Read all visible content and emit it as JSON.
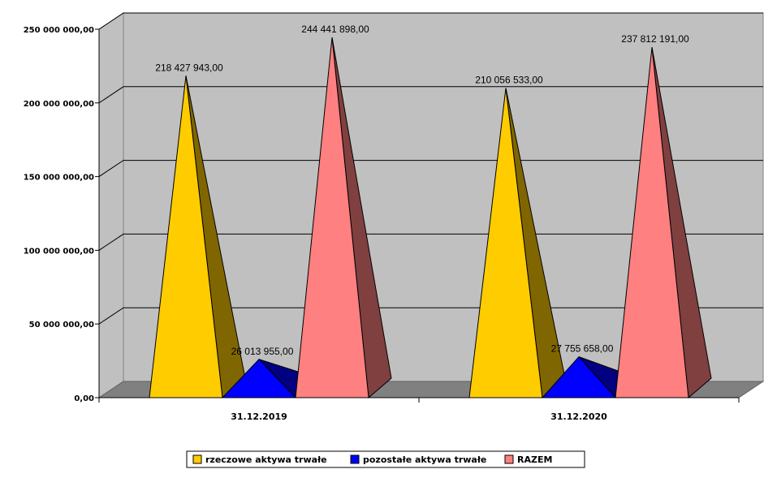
{
  "chart_data": {
    "type": "bar",
    "title": "",
    "xlabel": "",
    "ylabel": "",
    "categories": [
      "31.12.2019",
      "31.12.2020"
    ],
    "series": [
      {
        "name": "rzeczowe aktywa trwałe",
        "values": [
          218427943.0,
          210056533.0
        ],
        "labels": [
          "218 427 943,00",
          "210 056 533,00"
        ],
        "color": "#FFCC00",
        "side_color": "#806600"
      },
      {
        "name": "pozostałe aktywa trwałe",
        "values": [
          26013955.0,
          27755658.0
        ],
        "labels": [
          "26 013 955,00",
          "27 755 658,00"
        ],
        "color": "#0000FF",
        "side_color": "#000080"
      },
      {
        "name": "RAZEM",
        "values": [
          244441898.0,
          237812191.0
        ],
        "labels": [
          "244 441 898,00",
          "237 812 191,00"
        ],
        "color": "#FF8080",
        "side_color": "#804040"
      }
    ],
    "y_ticks": [
      {
        "value": 0,
        "label": "0,00"
      },
      {
        "value": 50000000,
        "label": "50 000 000,00"
      },
      {
        "value": 100000000,
        "label": "100 000 000,00"
      },
      {
        "value": 150000000,
        "label": "150 000 000,00"
      },
      {
        "value": 200000000,
        "label": "200 000 000,00"
      },
      {
        "value": 250000000,
        "label": "250 000 000,00"
      }
    ],
    "ylim": [
      0,
      250000000
    ],
    "grid": true,
    "legend_position": "bottom",
    "colors": {
      "wall": "#C0C0C0",
      "floor": "#808080",
      "grid": "#000000"
    }
  }
}
